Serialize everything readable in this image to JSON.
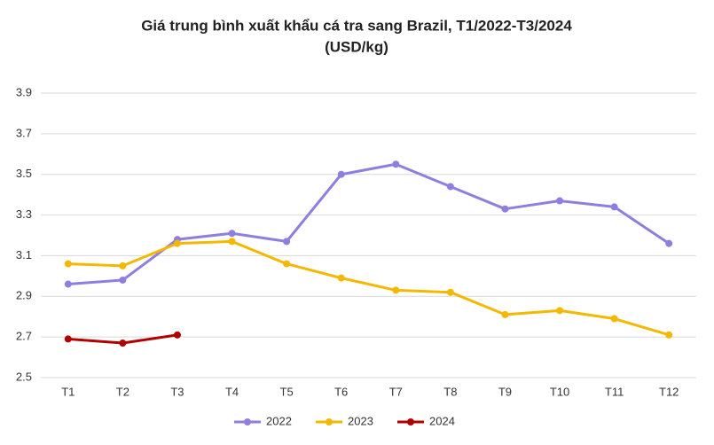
{
  "chart_data": {
    "type": "line",
    "title": "Giá trung bình xuất khẩu cá tra sang Brazil, T1/2022-T3/2024",
    "subtitle": "(USD/kg)",
    "categories": [
      "T1",
      "T2",
      "T3",
      "T4",
      "T5",
      "T6",
      "T7",
      "T8",
      "T9",
      "T10",
      "T11",
      "T12"
    ],
    "series": [
      {
        "name": "2022",
        "color": "#8f7ee0",
        "values": [
          2.96,
          2.98,
          3.18,
          3.21,
          3.17,
          3.5,
          3.55,
          3.44,
          3.33,
          3.37,
          3.34,
          3.16
        ]
      },
      {
        "name": "2023",
        "color": "#f5b800",
        "values": [
          3.06,
          3.05,
          3.16,
          3.17,
          3.06,
          2.99,
          2.93,
          2.92,
          2.81,
          2.83,
          2.79,
          2.71
        ]
      },
      {
        "name": "2024",
        "color": "#b00000",
        "values": [
          2.69,
          2.67,
          2.71,
          null,
          null,
          null,
          null,
          null,
          null,
          null,
          null,
          null
        ]
      }
    ],
    "ylim": [
      2.5,
      3.9
    ],
    "yticks": [
      2.5,
      2.7,
      2.9,
      3.1,
      3.3,
      3.5,
      3.7,
      3.9
    ],
    "grid": true,
    "legend": "bottom"
  }
}
